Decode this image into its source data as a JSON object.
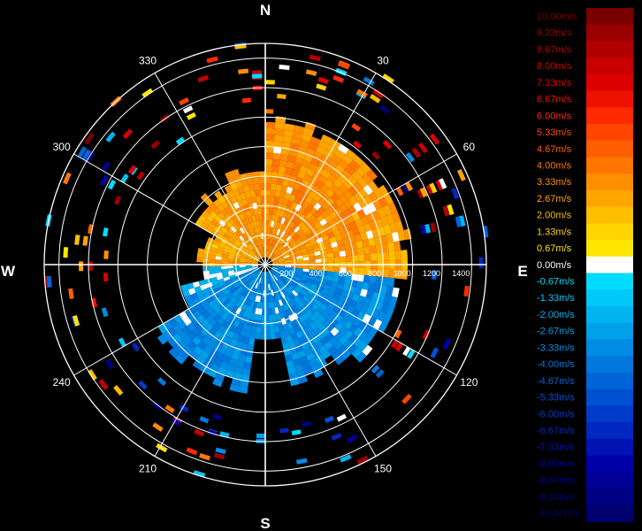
{
  "chart_data": {
    "type": "heatmap",
    "subtype": "polar-ppi",
    "unit": "m/s",
    "cardinal_labels": {
      "north": "N",
      "east": "E",
      "south": "S",
      "west": "W"
    },
    "azimuth_labels": [
      "30",
      "60",
      "120",
      "150",
      "210",
      "240",
      "300",
      "330"
    ],
    "azimuth_degrees": [
      30,
      60,
      120,
      150,
      210,
      240,
      300,
      330
    ],
    "range_labels": [
      "200",
      "400",
      "600",
      "800",
      "1000",
      "1200",
      "1400"
    ],
    "range_values": [
      200,
      400,
      600,
      800,
      1000,
      1200,
      1400
    ],
    "range_max": 1500,
    "rings_km": [
      200,
      400,
      600,
      800,
      1000,
      1200,
      1400
    ],
    "colorbar": {
      "min": -10.0,
      "max": 10.0,
      "labels": [
        "10.00m/s",
        "9.33m/s",
        "8.67m/s",
        "8.00m/s",
        "7.33m/s",
        "6.67m/s",
        "6.00m/s",
        "5.33m/s",
        "4.67m/s",
        "4.00m/s",
        "3.33m/s",
        "2.67m/s",
        "2.00m/s",
        "1.33m/s",
        "0.67m/s",
        "0.00m/s",
        "-0.67m/s",
        "-1.33m/s",
        "-2.00m/s",
        "-2.67m/s",
        "-3.33m/s",
        "-4.00m/s",
        "-4.67m/s",
        "-5.33m/s",
        "-6.00m/s",
        "-6.67m/s",
        "-7.33m/s",
        "-8.00m/s",
        "-8.67m/s",
        "-9.33m/s",
        "-10.00m/s"
      ],
      "colors": [
        "#7a0000",
        "#9a0000",
        "#b20000",
        "#c80000",
        "#dc0000",
        "#ee1000",
        "#ff2a00",
        "#ff4500",
        "#ff5f00",
        "#ff7700",
        "#ff8f00",
        "#ffa500",
        "#ffbe00",
        "#ffd500",
        "#ffe600",
        "#ffffff",
        "#00dcff",
        "#00c8f8",
        "#00b4f0",
        "#00a0ea",
        "#008ce4",
        "#0078de",
        "#0064d8",
        "#0050d2",
        "#003cca",
        "#0028c0",
        "#0014b4",
        "#0000a8",
        "#000096",
        "#000084",
        "#000070"
      ]
    },
    "main_echo": {
      "max_range": 1000,
      "approach_sector_deg": [
        200,
        360
      ],
      "receding_sector_deg": [
        270,
        90
      ],
      "description_values": {
        "approach_velocity": -3.3,
        "receding_velocity": 3.3
      }
    },
    "grid": true
  }
}
